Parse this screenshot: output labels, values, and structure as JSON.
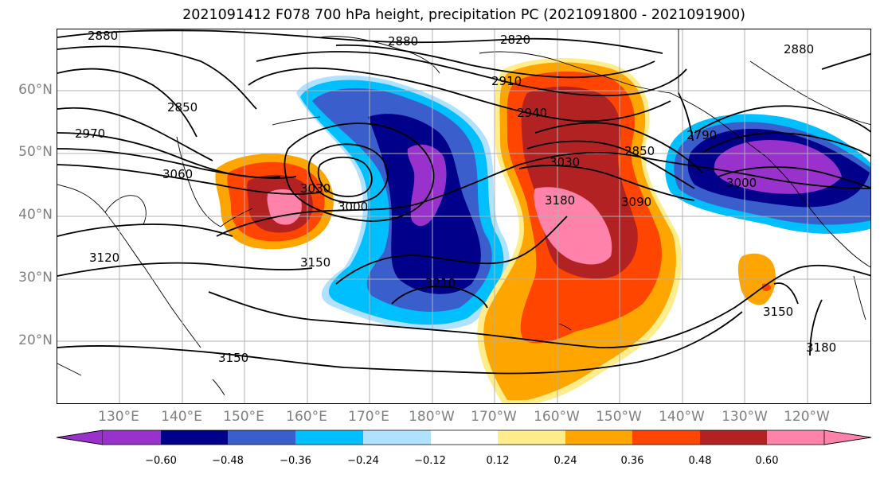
{
  "title": "2021091412 F078 700 hPa height, precipitation PC (2021091800 - 2021091900)",
  "lat_labels": [
    "60°N",
    "50°N",
    "40°N",
    "30°N",
    "20°N"
  ],
  "lon_labels": [
    "130°E",
    "140°E",
    "150°E",
    "160°E",
    "170°E",
    "180°W",
    "170°W",
    "160°W",
    "150°W",
    "140°W",
    "130°W",
    "120°W"
  ],
  "contour_labels": [
    "2880",
    "2880",
    "2820",
    "2880",
    "2910",
    "2940",
    "2850",
    "2970",
    "3060",
    "3030",
    "3000",
    "3150",
    "3180",
    "3030",
    "2850",
    "3090",
    "3210",
    "2790",
    "3000",
    "3150",
    "3150",
    "3180",
    "3120"
  ],
  "colorbar": {
    "ticks": [
      "−0.60",
      "−0.48",
      "−0.36",
      "−0.24",
      "−0.12",
      "0.12",
      "0.24",
      "0.36",
      "0.48",
      "0.60"
    ],
    "colors": [
      "#9932cc",
      "#00008b",
      "#3a5fcd",
      "#00bfff",
      "#b0e2ff",
      "#ffffff",
      "#ffec8b",
      "#ffa500",
      "#ff4500",
      "#b22222",
      "#ff82ab"
    ]
  }
}
